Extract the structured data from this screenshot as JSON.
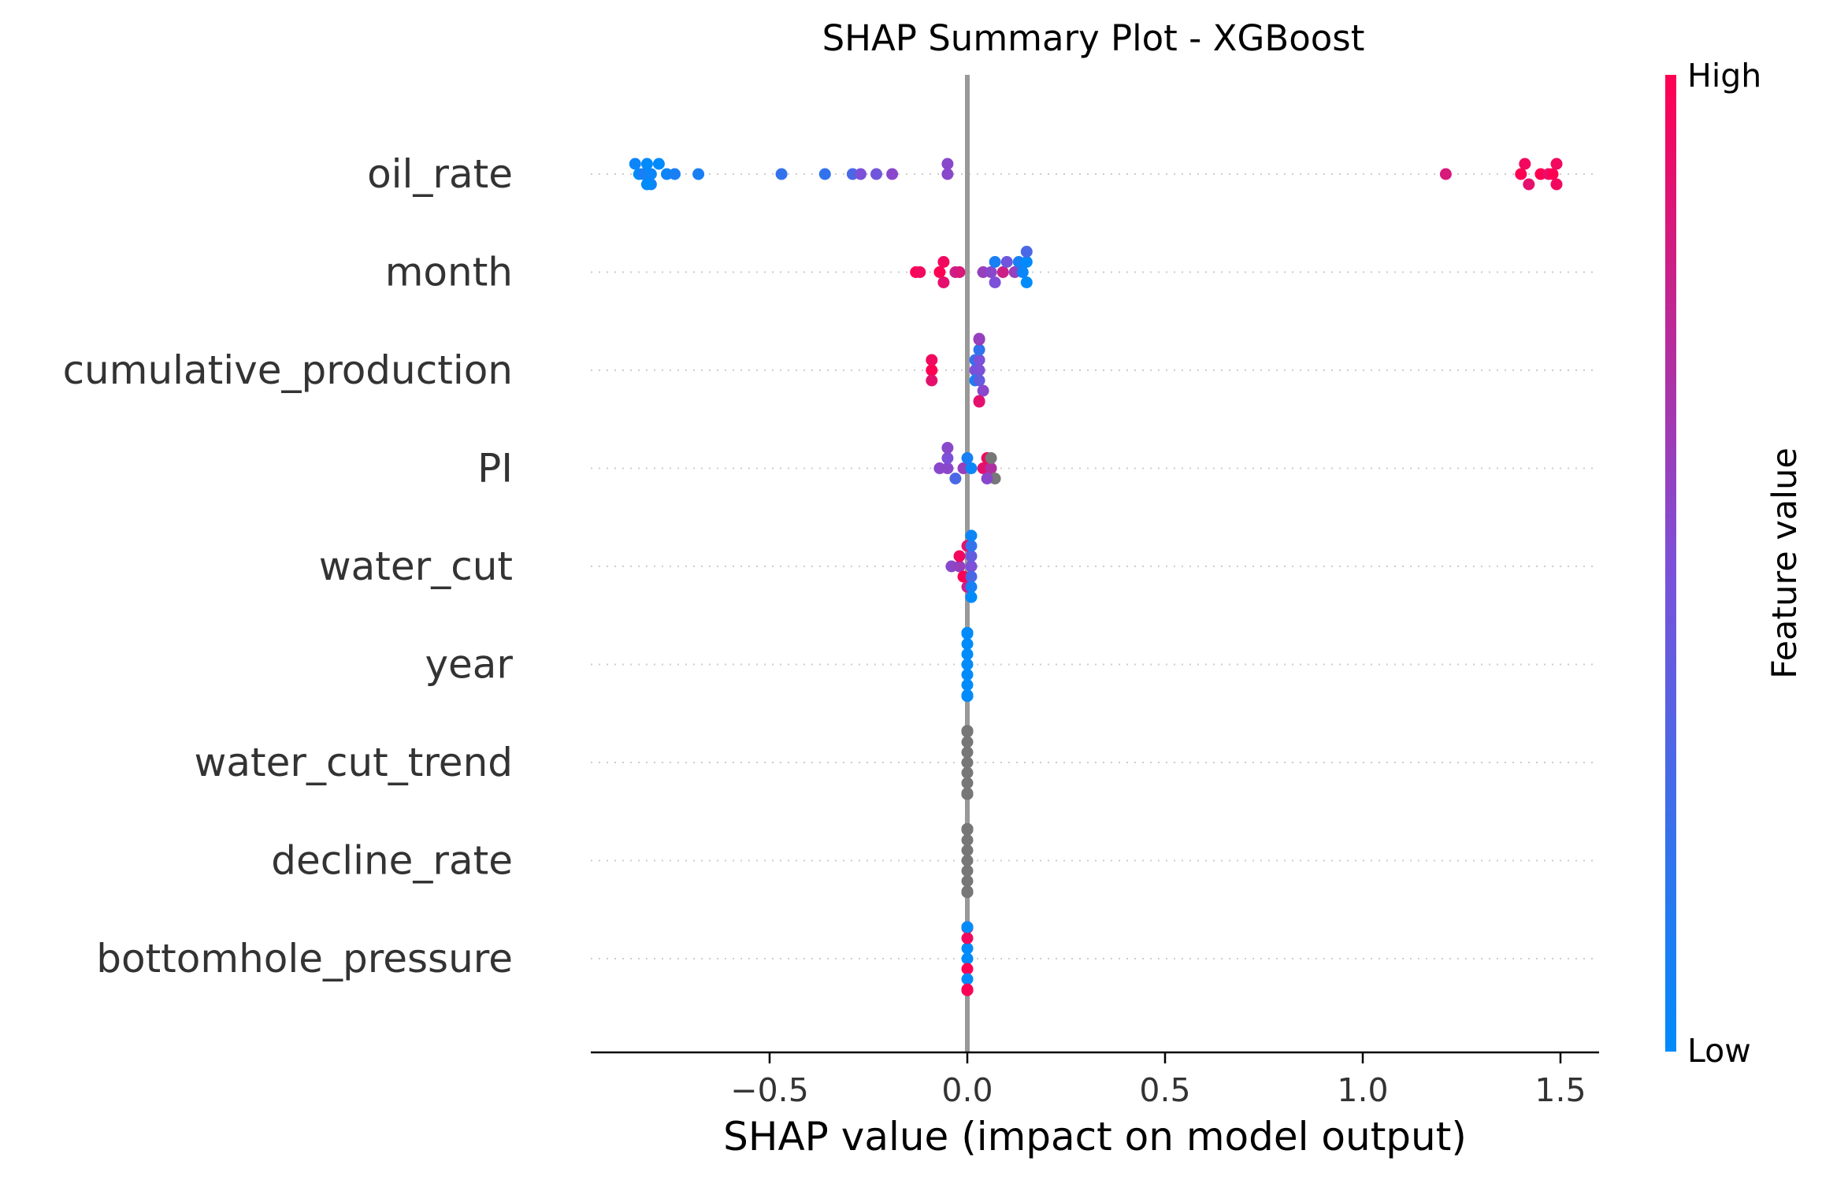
{
  "chart_data": {
    "type": "scatter",
    "title": "SHAP Summary Plot - XGBoost",
    "xlabel": "SHAP value (impact on model output)",
    "ylabel": "",
    "xlim": [
      -0.95,
      1.61
    ],
    "x_ticks": [
      -0.5,
      0.0,
      0.5,
      1.0,
      1.5
    ],
    "x_tick_labels": [
      "−0.5",
      "0.0",
      "0.5",
      "1.0",
      "1.5"
    ],
    "grid": false,
    "colorbar": {
      "label": "Feature value",
      "high_label": "High",
      "low_label": "Low",
      "low_color": "#008bfb",
      "high_color": "#ff0052",
      "nan_color": "#777777"
    },
    "features": [
      {
        "name": "oil_rate",
        "points": [
          {
            "x": -0.83,
            "v": 0.0
          },
          {
            "x": -0.84,
            "v": 0.05
          },
          {
            "x": -0.82,
            "v": 0.1
          },
          {
            "x": -0.8,
            "v": 0.05
          },
          {
            "x": -0.78,
            "v": 0.0
          },
          {
            "x": -0.76,
            "v": 0.05
          },
          {
            "x": -0.74,
            "v": 0.1
          },
          {
            "x": -0.81,
            "v": 0.0
          },
          {
            "x": -0.8,
            "v": 0.05
          },
          {
            "x": -0.81,
            "v": 0.0
          },
          {
            "x": -0.68,
            "v": 0.1
          },
          {
            "x": -0.47,
            "v": 0.2
          },
          {
            "x": -0.36,
            "v": 0.2
          },
          {
            "x": -0.29,
            "v": 0.3
          },
          {
            "x": -0.27,
            "v": 0.5
          },
          {
            "x": -0.23,
            "v": 0.45
          },
          {
            "x": -0.19,
            "v": 0.55
          },
          {
            "x": -0.05,
            "v": 0.55
          },
          {
            "x": -0.05,
            "v": 0.55
          },
          {
            "x": 1.21,
            "v": 0.85
          },
          {
            "x": 1.4,
            "v": 1.0
          },
          {
            "x": 1.41,
            "v": 0.95
          },
          {
            "x": 1.42,
            "v": 0.9
          },
          {
            "x": 1.45,
            "v": 1.0
          },
          {
            "x": 1.47,
            "v": 0.9
          },
          {
            "x": 1.48,
            "v": 1.0
          },
          {
            "x": 1.49,
            "v": 0.95
          },
          {
            "x": 1.49,
            "v": 0.95
          }
        ]
      },
      {
        "name": "month",
        "points": [
          {
            "x": -0.13,
            "v": 1.0
          },
          {
            "x": -0.12,
            "v": 0.95
          },
          {
            "x": -0.07,
            "v": 1.0
          },
          {
            "x": -0.06,
            "v": 0.95
          },
          {
            "x": -0.06,
            "v": 0.9
          },
          {
            "x": -0.03,
            "v": 0.8
          },
          {
            "x": -0.02,
            "v": 0.85
          },
          {
            "x": 0.04,
            "v": 0.6
          },
          {
            "x": 0.06,
            "v": 0.55
          },
          {
            "x": 0.07,
            "v": 0.1
          },
          {
            "x": 0.07,
            "v": 0.5
          },
          {
            "x": 0.09,
            "v": 0.8
          },
          {
            "x": 0.1,
            "v": 0.45
          },
          {
            "x": 0.12,
            "v": 0.6
          },
          {
            "x": 0.13,
            "v": 0.1
          },
          {
            "x": 0.14,
            "v": 0.05
          },
          {
            "x": 0.15,
            "v": 0.0
          },
          {
            "x": 0.15,
            "v": 0.0
          },
          {
            "x": 0.15,
            "v": 0.3
          }
        ]
      },
      {
        "name": "cumulative_production",
        "points": [
          {
            "x": -0.09,
            "v": 1.0
          },
          {
            "x": -0.09,
            "v": 0.95
          },
          {
            "x": -0.09,
            "v": 0.9
          },
          {
            "x": 0.02,
            "v": 0.5
          },
          {
            "x": 0.02,
            "v": 0.2
          },
          {
            "x": 0.02,
            "v": 0.1
          },
          {
            "x": 0.03,
            "v": 0.5
          },
          {
            "x": 0.03,
            "v": 0.5
          },
          {
            "x": 0.03,
            "v": 0.4
          },
          {
            "x": 0.03,
            "v": 0.2
          },
          {
            "x": 0.04,
            "v": 0.55
          },
          {
            "x": 0.03,
            "v": 0.7
          },
          {
            "x": 0.03,
            "v": 0.8
          },
          {
            "x": 0.03,
            "v": 0.6
          },
          {
            "x": 0.03,
            "v": 0.9
          }
        ]
      },
      {
        "name": "PI",
        "points": [
          {
            "x": -0.07,
            "v": 0.55
          },
          {
            "x": -0.05,
            "v": 0.55
          },
          {
            "x": -0.05,
            "v": 0.5
          },
          {
            "x": -0.03,
            "v": 0.3
          },
          {
            "x": -0.01,
            "v": 0.6
          },
          {
            "x": 0.0,
            "v": 0.1
          },
          {
            "x": 0.01,
            "v": 0.05
          },
          {
            "x": 0.04,
            "v": 0.9
          },
          {
            "x": 0.05,
            "v": 0.95
          },
          {
            "x": 0.06,
            "v": 0.7
          },
          {
            "x": 0.06,
            "v": null
          },
          {
            "x": 0.07,
            "v": null
          },
          {
            "x": 0.05,
            "v": 0.55
          },
          {
            "x": -0.05,
            "v": 0.55
          }
        ]
      },
      {
        "name": "water_cut",
        "points": [
          {
            "x": -0.04,
            "v": 0.55
          },
          {
            "x": -0.02,
            "v": 0.6
          },
          {
            "x": -0.02,
            "v": 0.95
          },
          {
            "x": -0.01,
            "v": 1.0
          },
          {
            "x": 0.0,
            "v": 0.9
          },
          {
            "x": 0.0,
            "v": 0.8
          },
          {
            "x": 0.01,
            "v": 0.5
          },
          {
            "x": 0.01,
            "v": 0.4
          },
          {
            "x": 0.01,
            "v": 0.3
          },
          {
            "x": 0.01,
            "v": 0.2
          },
          {
            "x": 0.01,
            "v": 0.1
          },
          {
            "x": 0.01,
            "v": 0.05
          },
          {
            "x": 0.01,
            "v": 0.0
          }
        ]
      },
      {
        "name": "year",
        "points": [
          {
            "x": 0.0,
            "v": 0.0
          },
          {
            "x": 0.0,
            "v": 0.0
          },
          {
            "x": 0.0,
            "v": 0.0
          },
          {
            "x": 0.0,
            "v": 0.0
          },
          {
            "x": 0.0,
            "v": 0.0
          },
          {
            "x": 0.0,
            "v": 0.0
          },
          {
            "x": 0.0,
            "v": 0.0
          },
          {
            "x": 0.0,
            "v": 0.0
          },
          {
            "x": 0.0,
            "v": 0.0
          },
          {
            "x": 0.0,
            "v": 0.0
          },
          {
            "x": 0.0,
            "v": 0.0
          },
          {
            "x": 0.0,
            "v": 0.0
          },
          {
            "x": 0.0,
            "v": 0.0
          },
          {
            "x": 0.0,
            "v": 0.0
          },
          {
            "x": 0.0,
            "v": 0.0
          },
          {
            "x": 0.0,
            "v": 0.0
          },
          {
            "x": 0.0,
            "v": 0.0
          },
          {
            "x": 0.0,
            "v": 0.0
          },
          {
            "x": 0.0,
            "v": 0.0
          },
          {
            "x": 0.0,
            "v": 0.0
          }
        ]
      },
      {
        "name": "water_cut_trend",
        "points": [
          {
            "x": 0.0,
            "v": null
          },
          {
            "x": 0.0,
            "v": null
          },
          {
            "x": 0.0,
            "v": null
          },
          {
            "x": 0.0,
            "v": null
          },
          {
            "x": 0.0,
            "v": null
          },
          {
            "x": 0.0,
            "v": null
          },
          {
            "x": 0.0,
            "v": null
          },
          {
            "x": 0.0,
            "v": null
          },
          {
            "x": 0.0,
            "v": null
          },
          {
            "x": 0.0,
            "v": null
          },
          {
            "x": 0.0,
            "v": null
          },
          {
            "x": 0.0,
            "v": null
          },
          {
            "x": 0.0,
            "v": null
          },
          {
            "x": 0.0,
            "v": null
          },
          {
            "x": 0.0,
            "v": null
          },
          {
            "x": 0.0,
            "v": null
          },
          {
            "x": 0.0,
            "v": null
          },
          {
            "x": 0.0,
            "v": null
          },
          {
            "x": 0.0,
            "v": null
          },
          {
            "x": 0.0,
            "v": null
          }
        ]
      },
      {
        "name": "decline_rate",
        "points": [
          {
            "x": 0.0,
            "v": null
          },
          {
            "x": 0.0,
            "v": null
          },
          {
            "x": 0.0,
            "v": null
          },
          {
            "x": 0.0,
            "v": null
          },
          {
            "x": 0.0,
            "v": null
          },
          {
            "x": 0.0,
            "v": null
          },
          {
            "x": 0.0,
            "v": null
          },
          {
            "x": 0.0,
            "v": null
          },
          {
            "x": 0.0,
            "v": null
          },
          {
            "x": 0.0,
            "v": null
          },
          {
            "x": 0.0,
            "v": null
          },
          {
            "x": 0.0,
            "v": null
          },
          {
            "x": 0.0,
            "v": null
          },
          {
            "x": 0.0,
            "v": null
          },
          {
            "x": 0.0,
            "v": null
          },
          {
            "x": 0.0,
            "v": null
          },
          {
            "x": 0.0,
            "v": null
          },
          {
            "x": 0.0,
            "v": null
          },
          {
            "x": 0.0,
            "v": null
          },
          {
            "x": 0.0,
            "v": null
          }
        ]
      },
      {
        "name": "bottomhole_pressure",
        "points": [
          {
            "x": 0.0,
            "v": 0.0
          },
          {
            "x": 0.0,
            "v": 0.0
          },
          {
            "x": 0.0,
            "v": 1.0
          },
          {
            "x": 0.0,
            "v": 0.95
          },
          {
            "x": 0.0,
            "v": 0.0
          },
          {
            "x": 0.0,
            "v": 1.0
          },
          {
            "x": 0.0,
            "v": 0.9
          },
          {
            "x": 0.0,
            "v": 0.0
          },
          {
            "x": 0.0,
            "v": 1.0
          },
          {
            "x": 0.0,
            "v": 0.95
          },
          {
            "x": 0.0,
            "v": 0.0
          },
          {
            "x": 0.0,
            "v": 1.0
          },
          {
            "x": 0.0,
            "v": 0.9
          },
          {
            "x": 0.0,
            "v": 0.0
          },
          {
            "x": 0.0,
            "v": 1.0
          },
          {
            "x": 0.0,
            "v": 0.0
          }
        ]
      }
    ]
  }
}
